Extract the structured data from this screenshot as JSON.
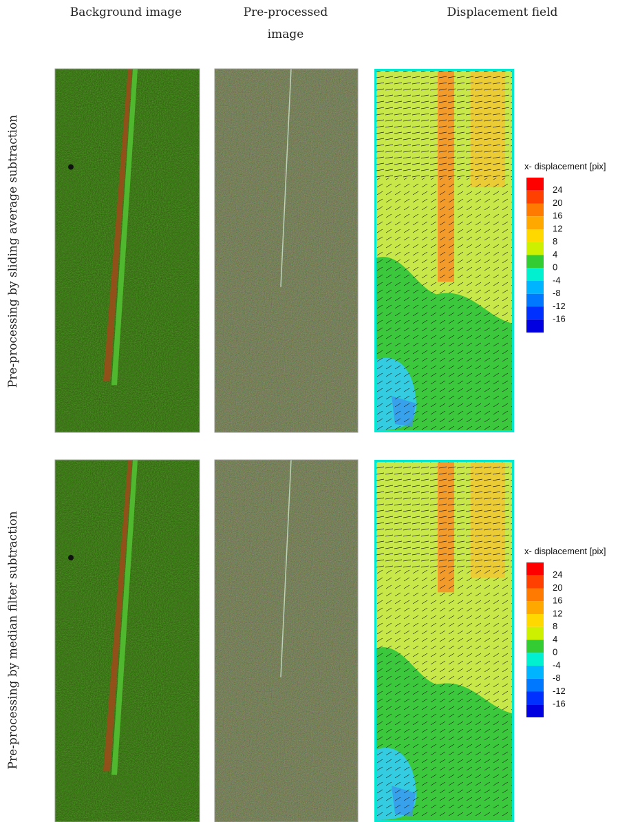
{
  "columns": [
    "Background image",
    [
      "Pre-processed",
      "image"
    ],
    "Displacement field"
  ],
  "rows": [
    "Pre-processing by sliding average subtraction",
    "Pre-processing by median filter subtraction"
  ],
  "colorbars": [
    {
      "title": "x- displacement [pix]",
      "levels": [
        24,
        20,
        16,
        12,
        8,
        4,
        0,
        -4,
        -8,
        -12,
        -16
      ]
    },
    {
      "title": "x- displacement [pix]",
      "levels": [
        24,
        20,
        16,
        12,
        8,
        4,
        0,
        -4,
        -8,
        -12,
        -16
      ]
    }
  ]
}
